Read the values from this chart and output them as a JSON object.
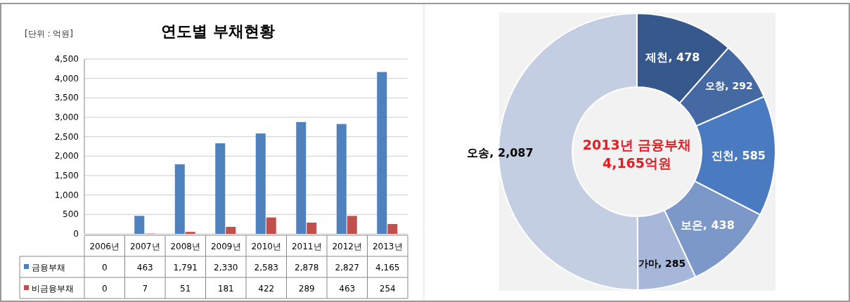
{
  "chart_data": [
    {
      "type": "bar",
      "title": "연도별 부채현황",
      "annotations": [
        "[단위 : 억원]"
      ],
      "categories": [
        "2006년",
        "2007년",
        "2008년",
        "2009년",
        "2010년",
        "2011년",
        "2012년",
        "2013년"
      ],
      "series": [
        {
          "name": "금융부채",
          "color": "#4f81bd",
          "values": [
            0,
            463,
            1791,
            2330,
            2583,
            2878,
            2827,
            4165
          ],
          "value_labels": [
            "0",
            "463",
            "1,791",
            "2,330",
            "2,583",
            "2,878",
            "2,827",
            "4,165"
          ]
        },
        {
          "name": "비금융부채",
          "color": "#c0504d",
          "values": [
            0,
            7,
            51,
            181,
            422,
            289,
            463,
            254
          ],
          "value_labels": [
            "0",
            "7",
            "51",
            "181",
            "422",
            "289",
            "463",
            "254"
          ]
        }
      ],
      "ylim": [
        0,
        4500
      ],
      "yticks": [
        0,
        {
          "value": 500,
          "label": "500"
        },
        {
          "value": 1000,
          "label": "1,000"
        },
        {
          "value": 1500,
          "label": "1,500"
        },
        {
          "value": 2000,
          "label": "2,000"
        },
        {
          "value": 2500,
          "label": "2,500"
        },
        {
          "value": 3000,
          "label": "3,000"
        },
        {
          "value": 3500,
          "label": "3,500"
        },
        {
          "value": 4000,
          "label": "4,000"
        },
        {
          "value": 4500,
          "label": "4,500"
        }
      ],
      "grid": "y",
      "legend": "bottom"
    },
    {
      "type": "donut",
      "categories": [
        "제천",
        "오창",
        "진천",
        "보은",
        "가마",
        "오송"
      ],
      "values": [
        478,
        292,
        585,
        438,
        285,
        2087
      ],
      "colors": [
        "#36588c",
        "#4469a3",
        "#4a7bc0",
        "#7b98c9",
        "#a6b7d9",
        "#c4cee3"
      ],
      "annotations": [
        "2013년 금융부채",
        "4,165억원"
      ],
      "value_labels": [
        ", 478",
        ", 292",
        ", 585",
        ", 438",
        ", 285",
        ", 2,087"
      ]
    }
  ]
}
